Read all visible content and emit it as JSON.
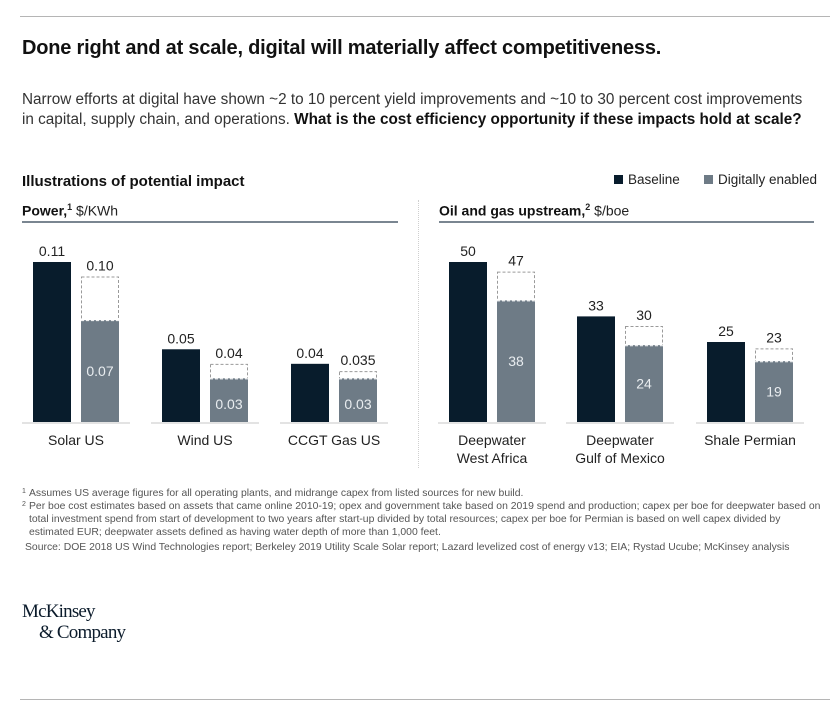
{
  "header": {
    "title": "Done right and at scale, digital will materially affect competitiveness.",
    "subtitle_regular": "Narrow efforts at digital have shown ~2 to 10 percent yield improvements and ~10 to 30 percent cost improvements in capital, supply chain, and operations. ",
    "subtitle_bold": "What is the cost efficiency opportunity if these impacts hold at scale?"
  },
  "section_title": "Illustrations of potential impact",
  "legend": {
    "baseline": "Baseline",
    "digital": "Digitally enabled"
  },
  "colors": {
    "baseline": "#081c2c",
    "digital": "#6e7b86",
    "potential_outline": "#9a9a9a"
  },
  "chart_data": [
    {
      "type": "bar",
      "title": "Power,",
      "title_footnote": "1",
      "unit": "$/KWh",
      "categories": [
        "Solar US",
        "Wind US",
        "CCGT Gas US"
      ],
      "series": [
        {
          "name": "Baseline",
          "values": [
            0.11,
            0.05,
            0.04
          ],
          "labels": [
            "0.11",
            "0.05",
            "0.04"
          ]
        },
        {
          "name": "Digitally enabled",
          "values": [
            0.07,
            0.03,
            0.03
          ],
          "labels": [
            "0.07",
            "0.03",
            "0.03"
          ]
        },
        {
          "name": "Digitally enabled (upper range, dashed)",
          "values": [
            0.1,
            0.04,
            0.035
          ],
          "labels": [
            "0.10",
            "0.04",
            "0.035"
          ]
        }
      ],
      "ylim": [
        0,
        0.11
      ],
      "grid": false,
      "legend_position": "top-right"
    },
    {
      "type": "bar",
      "title": "Oil and gas upstream,",
      "title_footnote": "2",
      "unit": "$/boe",
      "categories": [
        "Deepwater West Africa",
        "Deepwater Gulf of Mexico",
        "Shale Permian"
      ],
      "category_lines": [
        [
          "Deepwater",
          "West Africa"
        ],
        [
          "Deepwater",
          "Gulf of Mexico"
        ],
        [
          "Shale Permian"
        ]
      ],
      "series": [
        {
          "name": "Baseline",
          "values": [
            50,
            33,
            25
          ],
          "labels": [
            "50",
            "33",
            "25"
          ]
        },
        {
          "name": "Digitally enabled",
          "values": [
            38,
            24,
            19
          ],
          "labels": [
            "38",
            "24",
            "19"
          ]
        },
        {
          "name": "Digitally enabled (upper range, dashed)",
          "values": [
            47,
            30,
            23
          ],
          "labels": [
            "47",
            "30",
            "23"
          ]
        }
      ],
      "ylim": [
        0,
        50
      ],
      "grid": false,
      "legend_position": "top-right"
    }
  ],
  "footnotes": {
    "fn1_marker": "1",
    "fn1": "Assumes US average figures for all operating plants, and midrange capex from listed sources for new build.",
    "fn2_marker": "2",
    "fn2": "Per boe cost estimates based on assets that came online 2010-19; opex and government take based on 2019 spend and production; capex per boe for deepwater based on total investment spend from start of development to two years after start-up divided by total resources; capex per boe for Permian is based on well capex divided by estimated EUR; deepwater assets defined as having water depth of more than 1,000 feet.",
    "source": "Source: DOE 2018 US Wind Technologies report; Berkeley 2019 Utility Scale Solar report; Lazard levelized cost of energy v13; EIA; Rystad Ucube; McKinsey analysis"
  },
  "logo": {
    "line1": "McKinsey",
    "line2": "& Company"
  }
}
